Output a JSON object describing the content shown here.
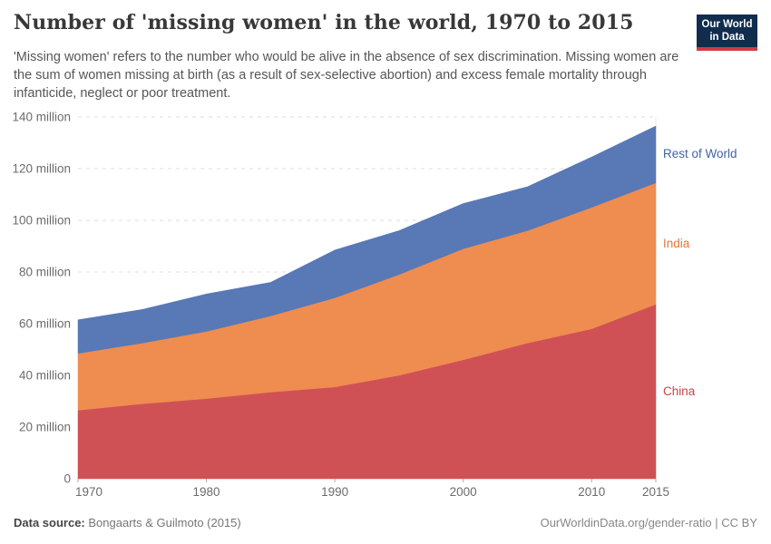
{
  "header": {
    "title": "Number of 'missing women' in the world, 1970 to 2015",
    "subtitle": "'Missing women' refers to the number who would be alive in the absence of sex discrimination. Missing women are the sum of women missing at birth (as a result of sex-selective abortion) and excess female mortality through infanticide, neglect or poor treatment.",
    "logo": {
      "line1": "Our World",
      "line2": "in Data",
      "bg_color": "#102d4e",
      "accent_color": "#d23a43"
    }
  },
  "chart_data": {
    "type": "area",
    "stacked": true,
    "title": "Number of 'missing women' in the world, 1970 to 2015",
    "xlabel": "",
    "ylabel": "",
    "x": [
      1970,
      1975,
      1980,
      1985,
      1990,
      1995,
      2000,
      2005,
      2010,
      2015
    ],
    "series": [
      {
        "name": "China",
        "color": "#d05155",
        "label_color": "#cf4146",
        "values": [
          26.5,
          29.0,
          31.0,
          33.5,
          35.5,
          40.0,
          46.0,
          52.5,
          58.0,
          67.5
        ]
      },
      {
        "name": "India",
        "color": "#ef8c50",
        "label_color": "#e8762f",
        "values": [
          22.0,
          23.5,
          26.0,
          29.5,
          34.5,
          39.0,
          43.0,
          43.5,
          47.0,
          47.0
        ]
      },
      {
        "name": "Rest of World",
        "color": "#5878b6",
        "label_color": "#3f63a6",
        "values": [
          13.0,
          13.0,
          14.5,
          13.0,
          18.5,
          17.0,
          17.5,
          17.0,
          19.5,
          22.0
        ]
      }
    ],
    "totals": [
      61.5,
      65.5,
      71.5,
      76.0,
      88.5,
      96.0,
      106.5,
      113.0,
      124.5,
      136.5
    ],
    "xlim": [
      1970,
      2015
    ],
    "ylim": [
      0,
      140
    ],
    "x_ticks": [
      1970,
      1980,
      1990,
      2000,
      2010,
      2015
    ],
    "y_ticks": [
      {
        "value": 0,
        "label": "0"
      },
      {
        "value": 20,
        "label": "20 million"
      },
      {
        "value": 40,
        "label": "40 million"
      },
      {
        "value": 60,
        "label": "60 million"
      },
      {
        "value": 80,
        "label": "80 million"
      },
      {
        "value": 100,
        "label": "100 million"
      },
      {
        "value": 120,
        "label": "120 million"
      },
      {
        "value": 140,
        "label": "140 million"
      }
    ],
    "grid": "horizontal dashed",
    "legend_position": "right edge, labels beside last values (top to bottom: Rest of World, India, China)",
    "units": "million"
  },
  "footer": {
    "source_label": "Data source:",
    "source_value": "Bongaarts & Guilmoto (2015)",
    "credit": "OurWorldinData.org/gender-ratio | CC BY"
  }
}
